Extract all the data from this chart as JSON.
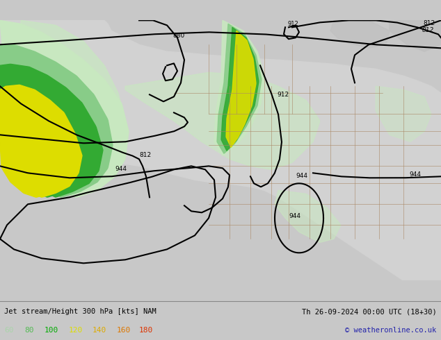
{
  "title_left": "Jet stream/Height 300 hPa [kts] NAM",
  "title_right": "Th 26-09-2024 00:00 UTC (18+30)",
  "copyright": "© weatheronline.co.uk",
  "legend_values": [
    60,
    80,
    100,
    120,
    140,
    160,
    180
  ],
  "legend_colors": [
    "#aad4aa",
    "#55bb55",
    "#00aa00",
    "#dddd00",
    "#ddaa00",
    "#dd7700",
    "#dd3300"
  ],
  "bg_color": "#c8c8c8",
  "land_color": "#d8d8d8",
  "ocean_color": "#c0c0c0",
  "wind60_color": "#c8e8c0",
  "wind80_color": "#88cc88",
  "wind100_color": "#33aa33",
  "wind120_color": "#dddd00",
  "wind140_color": "#ddaa00",
  "wind160_color": "#dd7700",
  "wind180_color": "#dd3300",
  "contour_color": "#000000",
  "border_color": "#996644",
  "bottom_bar_color": "#c8c8c8",
  "figsize": [
    6.34,
    4.9
  ],
  "dpi": 100
}
